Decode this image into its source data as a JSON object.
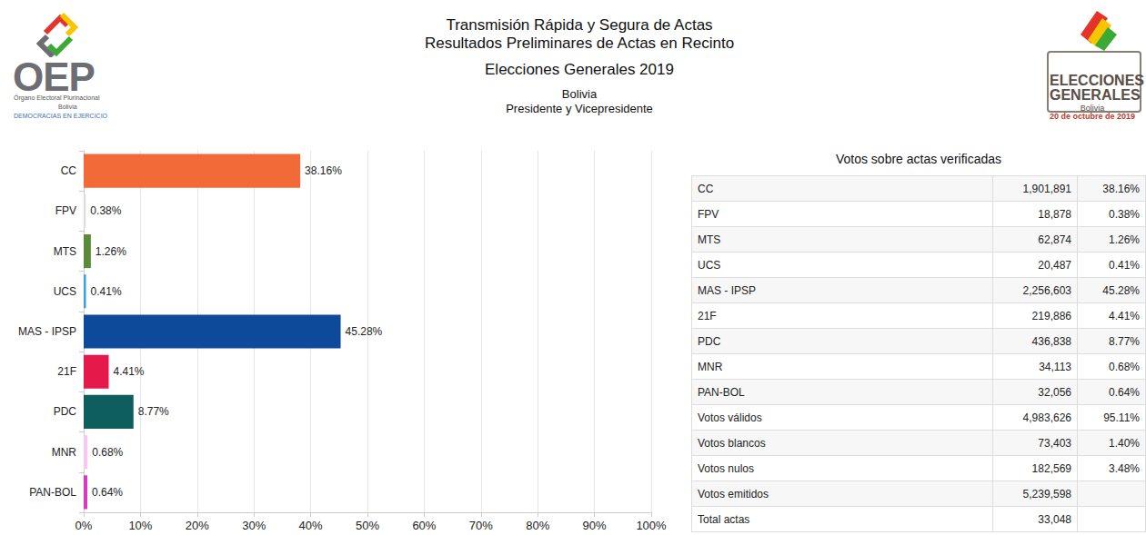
{
  "header": {
    "lines": [
      "Transmisión Rápida y Segura de Actas",
      "Resultados Preliminares de Actas en Recinto"
    ],
    "election": "Elecciones Generales 2019",
    "country": "Bolivia",
    "office": "Presidente y Vicepresidente"
  },
  "logo_left": {
    "acronym": "OEP",
    "name": "Órgano Electoral Plurinacional",
    "country": "Bolivia",
    "motto": "DEMOCRACIAS EN EJERCICIO"
  },
  "logo_right": {
    "lines": [
      "ELECCIONES",
      "GENERALES"
    ],
    "country": "Bolivia",
    "date": "20 de octubre de 2019"
  },
  "chart_data": {
    "type": "bar",
    "orientation": "horizontal",
    "categories": [
      "CC",
      "FPV",
      "MTS",
      "UCS",
      "MAS - IPSP",
      "21F",
      "PDC",
      "MNR",
      "PAN-BOL"
    ],
    "values": [
      38.16,
      0.38,
      1.26,
      0.41,
      45.28,
      4.41,
      8.77,
      0.68,
      0.64
    ],
    "value_labels": [
      "38.16%",
      "0.38%",
      "1.26%",
      "0.41%",
      "45.28%",
      "4.41%",
      "8.77%",
      "0.68%",
      "0.64%"
    ],
    "colors": [
      "#f26a37",
      "#dddddd",
      "#5b8a3a",
      "#3aa3dc",
      "#0d4a9a",
      "#e6194b",
      "#0e5e5e",
      "#f5c8f0",
      "#d63bbf"
    ],
    "xlim": [
      0,
      100
    ],
    "xticks": [
      {
        "value": 0,
        "label": "0%"
      },
      {
        "value": 10,
        "label": "10%"
      },
      {
        "value": 20,
        "label": "20%"
      },
      {
        "value": 30,
        "label": "30%"
      },
      {
        "value": 40,
        "label": "40%"
      },
      {
        "value": 50,
        "label": "50%"
      },
      {
        "value": 60,
        "label": "60%"
      },
      {
        "value": 70,
        "label": "70%"
      },
      {
        "value": 80,
        "label": "80%"
      },
      {
        "value": 90,
        "label": "90%"
      },
      {
        "value": 100,
        "label": "100%"
      }
    ],
    "grid": true,
    "data_labels": true
  },
  "table": {
    "title": "Votos sobre actas verificadas",
    "rows": [
      [
        "CC",
        "1,901,891",
        "38.16%"
      ],
      [
        "FPV",
        "18,878",
        "0.38%"
      ],
      [
        "MTS",
        "62,874",
        "1.26%"
      ],
      [
        "UCS",
        "20,487",
        "0.41%"
      ],
      [
        "MAS - IPSP",
        "2,256,603",
        "45.28%"
      ],
      [
        "21F",
        "219,886",
        "4.41%"
      ],
      [
        "PDC",
        "436,838",
        "8.77%"
      ],
      [
        "MNR",
        "34,113",
        "0.68%"
      ],
      [
        "PAN-BOL",
        "32,056",
        "0.64%"
      ],
      [
        "Votos válidos",
        "4,983,626",
        "95.11%"
      ],
      [
        "Votos blancos",
        "73,403",
        "1.40%"
      ],
      [
        "Votos nulos",
        "182,569",
        "3.48%"
      ],
      [
        "Votos emitidos",
        "5,239,598"
      ],
      [
        "Total actas",
        "33,048"
      ]
    ]
  }
}
